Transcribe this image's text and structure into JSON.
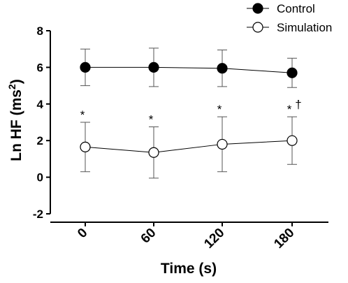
{
  "chart_data": {
    "type": "line",
    "xlabel": "Time (s)",
    "ylabel": "Ln HF (ms²)",
    "ylabel_parts": {
      "base": "Ln HF (ms",
      "sup": "2",
      "end": ")"
    },
    "categories": [
      "0",
      "60",
      "120",
      "180"
    ],
    "ylim": [
      -2,
      8
    ],
    "yticks": [
      "-2",
      "0",
      "2",
      "4",
      "6",
      "8"
    ],
    "grid": false,
    "legend_position": "top-right",
    "series": [
      {
        "name": "Control",
        "marker": "filled-circle",
        "values": [
          6.0,
          6.0,
          5.95,
          5.7
        ],
        "error": [
          1.0,
          1.05,
          1.0,
          0.8
        ]
      },
      {
        "name": "Simulation",
        "marker": "open-circle",
        "values": [
          1.65,
          1.35,
          1.8,
          2.0
        ],
        "error": [
          1.35,
          1.4,
          1.5,
          1.3
        ]
      }
    ],
    "annotations": [
      {
        "category": "0",
        "series": "Simulation",
        "text": "*"
      },
      {
        "category": "60",
        "series": "Simulation",
        "text": "*"
      },
      {
        "category": "120",
        "series": "Simulation",
        "text": "*"
      },
      {
        "category": "180",
        "series": "Simulation",
        "text": "*"
      },
      {
        "category": "180",
        "series": "Simulation",
        "text": "†"
      }
    ],
    "colors": {
      "axis": "#000000",
      "line": "#000000",
      "fill_filled": "#000000",
      "fill_open": "#ffffff",
      "errorbar": "#555555"
    }
  }
}
